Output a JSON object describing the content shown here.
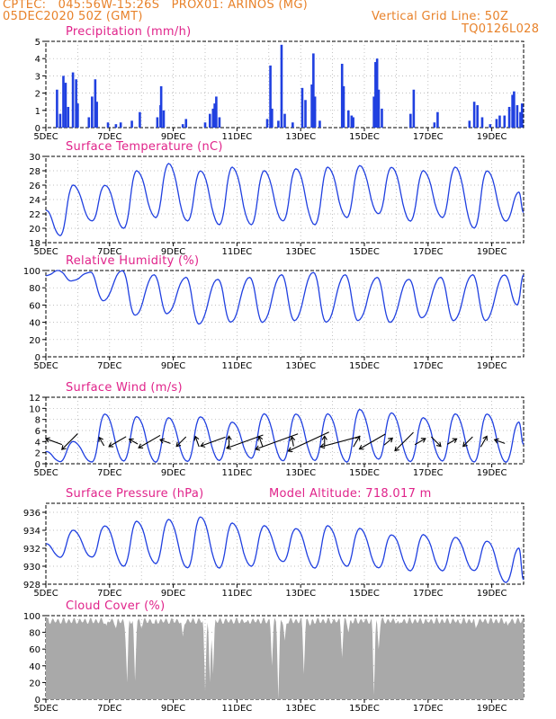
{
  "header": {
    "line1": "CPTEC:   045:56W-15:26S   PROX01: ARINOS (MG)",
    "line2_left": "05DEC2020 50Z (GMT)",
    "line2_right": "Vertical Grid Line: 50Z",
    "line3_right": "TQ0126L028"
  },
  "colors": {
    "title": "#e0238a",
    "header": "#e8822a",
    "line": "#2040e0",
    "cloud": "#a9a9a9"
  },
  "x_ticks": [
    "5DEC",
    "7DEC",
    "9DEC",
    "11DEC",
    "13DEC",
    "15DEC",
    "17DEC",
    "19DEC"
  ],
  "chart_data": [
    {
      "type": "bar",
      "title": "Precipitation  (mm/h)",
      "ylim": [
        0,
        5
      ],
      "yticks": [
        0,
        1,
        2,
        3,
        4,
        5
      ],
      "x_range_days": [
        0,
        15
      ],
      "events": [
        [
          0.35,
          2.2
        ],
        [
          0.45,
          0.8
        ],
        [
          0.55,
          3.0
        ],
        [
          0.62,
          2.6
        ],
        [
          0.7,
          1.2
        ],
        [
          0.85,
          3.2
        ],
        [
          0.95,
          2.8
        ],
        [
          1.0,
          1.4
        ],
        [
          1.35,
          0.6
        ],
        [
          1.45,
          1.8
        ],
        [
          1.55,
          2.8
        ],
        [
          1.6,
          1.5
        ],
        [
          1.95,
          0.3
        ],
        [
          2.2,
          0.2
        ],
        [
          2.35,
          0.3
        ],
        [
          2.7,
          0.4
        ],
        [
          2.95,
          0.9
        ],
        [
          3.5,
          0.6
        ],
        [
          3.6,
          1.3
        ],
        [
          3.62,
          2.4
        ],
        [
          3.7,
          1.0
        ],
        [
          4.3,
          0.2
        ],
        [
          4.4,
          0.5
        ],
        [
          5.0,
          0.3
        ],
        [
          5.15,
          0.8
        ],
        [
          5.25,
          1.1
        ],
        [
          5.3,
          1.4
        ],
        [
          5.35,
          1.8
        ],
        [
          5.45,
          0.6
        ],
        [
          6.95,
          0.5
        ],
        [
          7.05,
          3.6
        ],
        [
          7.1,
          1.1
        ],
        [
          7.3,
          0.4
        ],
        [
          7.4,
          4.8
        ],
        [
          7.5,
          0.8
        ],
        [
          7.75,
          0.3
        ],
        [
          8.05,
          2.3
        ],
        [
          8.15,
          1.6
        ],
        [
          8.35,
          2.5
        ],
        [
          8.4,
          4.3
        ],
        [
          8.45,
          1.8
        ],
        [
          8.6,
          0.4
        ],
        [
          9.3,
          3.7
        ],
        [
          9.35,
          2.4
        ],
        [
          9.5,
          1.0
        ],
        [
          9.6,
          0.7
        ],
        [
          9.65,
          0.6
        ],
        [
          10.3,
          1.8
        ],
        [
          10.35,
          3.8
        ],
        [
          10.4,
          4.0
        ],
        [
          10.45,
          2.2
        ],
        [
          10.55,
          1.1
        ],
        [
          11.45,
          0.8
        ],
        [
          11.55,
          2.2
        ],
        [
          12.2,
          0.3
        ],
        [
          12.3,
          0.9
        ],
        [
          13.3,
          0.4
        ],
        [
          13.45,
          1.5
        ],
        [
          13.55,
          1.3
        ],
        [
          13.7,
          0.6
        ],
        [
          13.95,
          0.2
        ],
        [
          14.15,
          0.5
        ],
        [
          14.25,
          0.7
        ],
        [
          14.4,
          0.7
        ],
        [
          14.55,
          1.2
        ],
        [
          14.65,
          1.9
        ],
        [
          14.7,
          2.1
        ],
        [
          14.8,
          1.3
        ],
        [
          14.9,
          0.9
        ],
        [
          14.95,
          1.4
        ]
      ]
    },
    {
      "type": "line",
      "title": "Surface Temperature (nC)",
      "ylim": [
        18,
        30
      ],
      "yticks": [
        18,
        20,
        22,
        24,
        26,
        28,
        30
      ],
      "x_range_days": [
        0,
        15
      ],
      "daily_min": [
        19.0,
        21.0,
        20.0,
        21.5,
        21.0,
        20.5,
        20.5,
        21.0,
        20.5,
        21.5,
        22.0,
        21.0,
        21.5,
        20.0,
        21.0
      ],
      "daily_max": [
        26.0,
        26.0,
        28.0,
        29.0,
        28.0,
        28.5,
        28.0,
        28.3,
        28.5,
        28.7,
        28.5,
        28.0,
        28.5,
        28.0,
        25.0
      ],
      "end_value": 22.2
    },
    {
      "type": "line",
      "title": "Relative Humidity  (%)",
      "ylim": [
        0,
        100
      ],
      "yticks": [
        0,
        20,
        40,
        60,
        80,
        100
      ],
      "x_range_days": [
        0,
        15
      ],
      "daily_min": [
        88,
        65,
        48,
        50,
        38,
        40,
        40,
        42,
        40,
        42,
        40,
        45,
        42,
        42,
        60
      ],
      "daily_max": [
        100,
        98,
        100,
        95,
        92,
        90,
        92,
        95,
        98,
        95,
        92,
        90,
        92,
        95,
        95
      ],
      "end_value": 95
    },
    {
      "type": "line",
      "title": "Surface Wind  (m/s)",
      "ylim": [
        0,
        12
      ],
      "yticks": [
        0,
        2,
        4,
        6,
        8,
        10,
        12
      ],
      "x_range_days": [
        0,
        15
      ],
      "daily_min": [
        0.4,
        0.3,
        0.5,
        0.3,
        0.4,
        0.6,
        1.0,
        0.5,
        0.6,
        0.3,
        0.8,
        0.4,
        0.5,
        0.3,
        0.3
      ],
      "daily_max": [
        4.0,
        9.0,
        8.5,
        8.3,
        8.5,
        7.5,
        9.0,
        9.0,
        9.0,
        9.8,
        9.2,
        8.3,
        9.0,
        9.0,
        7.5
      ],
      "end_value": 3.5,
      "vectors_deg_from_east": [
        [
          0.25,
          160,
          0.8
        ],
        [
          0.75,
          225,
          1.2
        ],
        [
          1.75,
          120,
          0.2
        ],
        [
          2.25,
          210,
          1.0
        ],
        [
          2.75,
          150,
          0.2
        ],
        [
          3.25,
          210,
          1.4
        ],
        [
          3.75,
          160,
          0.3
        ],
        [
          4.25,
          225,
          0.5
        ],
        [
          4.75,
          110,
          0.3
        ],
        [
          5.25,
          200,
          1.5
        ],
        [
          5.75,
          90,
          0.3
        ],
        [
          6.25,
          200,
          2.5
        ],
        [
          6.75,
          110,
          0.3
        ],
        [
          7.25,
          200,
          3.0
        ],
        [
          7.75,
          100,
          0.2
        ],
        [
          8.25,
          205,
          3.0
        ],
        [
          8.75,
          90,
          0.3
        ],
        [
          9.25,
          195,
          2.7
        ],
        [
          9.75,
          60,
          0.4
        ],
        [
          10.25,
          210,
          1.8
        ],
        [
          10.75,
          40,
          0.3
        ],
        [
          11.25,
          225,
          1.5
        ],
        [
          11.75,
          30,
          0.4
        ],
        [
          12.25,
          315,
          0.5
        ],
        [
          12.75,
          30,
          0.3
        ],
        [
          13.25,
          225,
          0.5
        ],
        [
          13.75,
          60,
          0.4
        ],
        [
          14.25,
          160,
          0.3
        ]
      ]
    },
    {
      "type": "line",
      "title": "Surface Pressure  (hPa)",
      "subtitle": "Model Altitude: 718.017  m",
      "ylim": [
        928,
        937
      ],
      "yticks": [
        928,
        930,
        932,
        934,
        936
      ],
      "x_range_days": [
        0,
        15
      ],
      "daily_min": [
        931.0,
        931.0,
        930.0,
        930.3,
        929.8,
        929.8,
        930.0,
        930.5,
        929.8,
        930.0,
        929.8,
        929.5,
        929.5,
        929.5,
        928.2
      ],
      "daily_max": [
        934.0,
        934.5,
        935.0,
        935.2,
        935.5,
        934.8,
        934.5,
        934.2,
        934.5,
        934.2,
        933.5,
        933.5,
        933.2,
        932.8,
        932.0
      ],
      "end_value": 928.5
    },
    {
      "type": "area",
      "title": "Cloud Cover  (%)",
      "ylim": [
        0,
        100
      ],
      "yticks": [
        0,
        20,
        40,
        60,
        80,
        100
      ],
      "x_range_days": [
        0,
        15
      ],
      "base_level": 95,
      "dips": [
        [
          1.9,
          88
        ],
        [
          2.2,
          85
        ],
        [
          2.5,
          80
        ],
        [
          2.55,
          20
        ],
        [
          2.65,
          95
        ],
        [
          2.8,
          22
        ],
        [
          3.0,
          85
        ],
        [
          3.4,
          90
        ],
        [
          4.3,
          75
        ],
        [
          5.0,
          10
        ],
        [
          5.15,
          20
        ],
        [
          5.25,
          30
        ],
        [
          6.3,
          92
        ],
        [
          7.1,
          40
        ],
        [
          7.3,
          0
        ],
        [
          7.5,
          70
        ],
        [
          8.1,
          30
        ],
        [
          8.3,
          88
        ],
        [
          9.3,
          50
        ],
        [
          9.5,
          80
        ],
        [
          10.3,
          5
        ],
        [
          10.45,
          60
        ],
        [
          11.1,
          90
        ],
        [
          12.0,
          92
        ],
        [
          13.0,
          90
        ],
        [
          13.5,
          85
        ],
        [
          14.5,
          88
        ]
      ]
    }
  ]
}
